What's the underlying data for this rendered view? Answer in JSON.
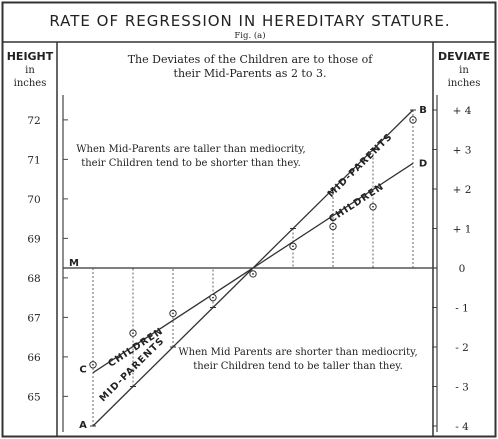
{
  "chart_data": {
    "type": "line",
    "title": "RATE OF REGRESSION IN HEREDITARY STATURE.",
    "subtitle": "Fig. (a)",
    "note_top": [
      "The Deviates of the Children are to those of",
      "their Mid-Parents as 2 to 3."
    ],
    "note_upper": [
      "When Mid-Parents are taller than mediocrity,",
      "their Children tend to be shorter than they."
    ],
    "note_lower": [
      "When Mid Parents are shorter than mediocrity,",
      "their Children tend to be taller than they."
    ],
    "left_axis": {
      "label": [
        "HEIGHT",
        "in",
        "inches"
      ],
      "ticks": [
        72,
        71,
        70,
        69,
        68,
        67,
        66,
        65
      ],
      "ylim": [
        64.5,
        72.5
      ]
    },
    "right_axis": {
      "label": [
        "DEVIATE",
        "in",
        "inches"
      ],
      "ticks": [
        "+ 4",
        "+ 3",
        "+ 2",
        "+ 1",
        "0",
        "- 1",
        "- 2",
        "- 3",
        "- 4"
      ]
    },
    "mediocrity": 68.25,
    "mediocrity_label": "M",
    "series": [
      {
        "name": "MID-PARENTS",
        "label_lower": "MID-PARENTS",
        "label_upper": "MID-PARENTS",
        "end_labels": [
          "A",
          "B"
        ],
        "x": [
          0,
          8
        ],
        "y": [
          64.25,
          72.25
        ]
      },
      {
        "name": "CHILDREN",
        "label_lower": "CHILDREN",
        "label_upper": "CHILDREN",
        "end_labels": [
          "C",
          "D"
        ],
        "x": [
          0,
          8
        ],
        "y": [
          65.6,
          70.9
        ]
      }
    ],
    "observations": {
      "x": [
        0,
        1,
        2,
        3,
        4,
        5,
        6,
        7,
        8
      ],
      "mid_parents": [
        64.25,
        65.25,
        66.25,
        67.25,
        68.25,
        69.25,
        70.25,
        71.25,
        72.25
      ],
      "children": [
        65.8,
        66.6,
        67.1,
        67.5,
        68.1,
        68.8,
        69.3,
        69.8,
        72.0
      ]
    }
  }
}
